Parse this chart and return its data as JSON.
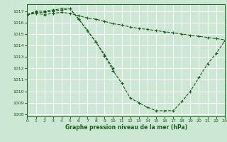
{
  "title": "Graphe pression niveau de la mer (hPa)",
  "background_color": "#cce8d4",
  "grid_color": "#ffffff",
  "line_color": "#1a5c1a",
  "xlim": [
    0,
    23
  ],
  "ylim": [
    1007.8,
    1017.6
  ],
  "yticks": [
    1008,
    1009,
    1010,
    1011,
    1012,
    1013,
    1014,
    1015,
    1016,
    1017
  ],
  "xticks": [
    0,
    1,
    2,
    3,
    4,
    5,
    6,
    7,
    8,
    9,
    10,
    11,
    12,
    13,
    14,
    15,
    16,
    17,
    18,
    19,
    20,
    21,
    22,
    23
  ],
  "series": [
    {
      "x": [
        0,
        1,
        2,
        3,
        4,
        5,
        6,
        7,
        8,
        9,
        10,
        11,
        12,
        13,
        14,
        15,
        16,
        17,
        18,
        19,
        20,
        21,
        22,
        23
      ],
      "y": [
        1016.7,
        1017.0,
        1017.0,
        1017.1,
        1017.2,
        1017.2,
        1016.3,
        1015.3,
        1014.3,
        1013.1,
        1011.8,
        1010.7,
        1009.4,
        1009.0,
        1008.6,
        1008.3,
        1008.3,
        1008.3,
        1009.1,
        1010.0,
        1011.2,
        1012.4,
        1013.3,
        1014.4
      ]
    },
    {
      "x": [
        0,
        1,
        2,
        3,
        4,
        5,
        6,
        7,
        8,
        9,
        10,
        11,
        12,
        13,
        14,
        15,
        16,
        17,
        18,
        19,
        20,
        21,
        22,
        23
      ],
      "y": [
        1016.7,
        1016.8,
        1016.7,
        1016.8,
        1016.9,
        1016.8,
        1016.6,
        1016.4,
        1016.3,
        1016.1,
        1015.9,
        1015.8,
        1015.6,
        1015.5,
        1015.4,
        1015.3,
        1015.2,
        1015.1,
        1015.0,
        1014.9,
        1014.8,
        1014.7,
        1014.6,
        1014.5
      ]
    },
    {
      "x": [
        0,
        1,
        2,
        3,
        4,
        5,
        6,
        7,
        8,
        9,
        10
      ],
      "y": [
        1016.7,
        1016.9,
        1016.9,
        1017.0,
        1017.1,
        1017.2,
        1016.3,
        1015.3,
        1014.3,
        1013.2,
        1012.0
      ]
    }
  ]
}
